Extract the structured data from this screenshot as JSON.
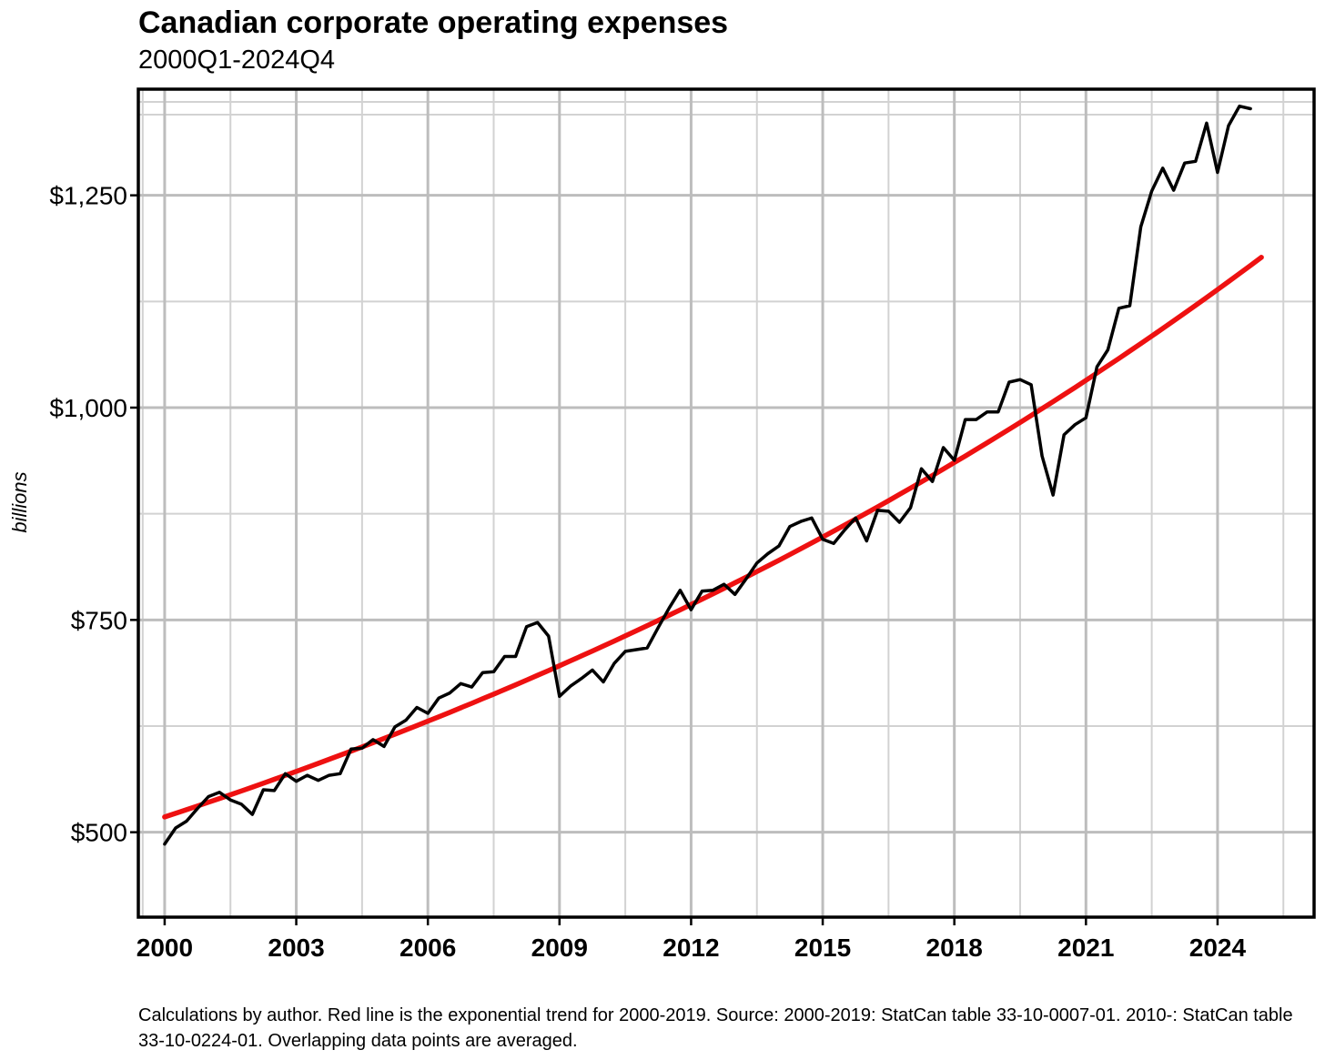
{
  "chart_data": {
    "type": "line",
    "title": "Canadian corporate operating expenses",
    "subtitle": "2000Q1-2024Q4",
    "xlabel": "",
    "ylabel": "billions",
    "xlim": [
      1999.4,
      2026.2
    ],
    "ylim": [
      400,
      1375
    ],
    "x_ticks": [
      2000,
      2003,
      2006,
      2009,
      2012,
      2015,
      2018,
      2021,
      2024
    ],
    "x_tick_labels": [
      "2000",
      "2003",
      "2006",
      "2009",
      "2012",
      "2015",
      "2018",
      "2021",
      "2024"
    ],
    "y_ticks": [
      500,
      750,
      1000,
      1250
    ],
    "y_tick_labels": [
      "$500",
      "$750",
      "$1,000",
      "$1,250"
    ],
    "x_minor_grid": [
      1999.5,
      2000,
      2001.5,
      2003,
      2004.5,
      2006,
      2007.5,
      2009,
      2010.5,
      2012,
      2013.5,
      2015,
      2016.5,
      2018,
      2019.5,
      2021,
      2022.5,
      2024,
      2025.5
    ],
    "y_minor_grid": [
      500,
      625,
      750,
      875,
      1000,
      1125,
      1250,
      1345,
      1360
    ],
    "grid": true,
    "series": [
      {
        "name": "Operating expenses",
        "color": "#000000",
        "x": [
          2000.0,
          2000.25,
          2000.5,
          2000.75,
          2001.0,
          2001.25,
          2001.5,
          2001.75,
          2002.0,
          2002.25,
          2002.5,
          2002.75,
          2003.0,
          2003.25,
          2003.5,
          2003.75,
          2004.0,
          2004.25,
          2004.5,
          2004.75,
          2005.0,
          2005.25,
          2005.5,
          2005.75,
          2006.0,
          2006.25,
          2006.5,
          2006.75,
          2007.0,
          2007.25,
          2007.5,
          2007.75,
          2008.0,
          2008.25,
          2008.5,
          2008.75,
          2009.0,
          2009.25,
          2009.5,
          2009.75,
          2010.0,
          2010.25,
          2010.5,
          2010.75,
          2011.0,
          2011.25,
          2011.5,
          2011.75,
          2012.0,
          2012.25,
          2012.5,
          2012.75,
          2013.0,
          2013.25,
          2013.5,
          2013.75,
          2014.0,
          2014.25,
          2014.5,
          2014.75,
          2015.0,
          2015.25,
          2015.5,
          2015.75,
          2016.0,
          2016.25,
          2016.5,
          2016.75,
          2017.0,
          2017.25,
          2017.5,
          2017.75,
          2018.0,
          2018.25,
          2018.5,
          2018.75,
          2019.0,
          2019.25,
          2019.5,
          2019.75,
          2020.0,
          2020.25,
          2020.5,
          2020.75,
          2021.0,
          2021.25,
          2021.5,
          2021.75,
          2022.0,
          2022.25,
          2022.5,
          2022.75,
          2023.0,
          2023.25,
          2023.5,
          2023.75,
          2024.0,
          2024.25,
          2024.5,
          2024.75
        ],
        "values": [
          486,
          505,
          513,
          528,
          542,
          547,
          538,
          533,
          521,
          550,
          549,
          569,
          560,
          567,
          561,
          567,
          569,
          598,
          599,
          609,
          601,
          624,
          632,
          647,
          640,
          658,
          664,
          675,
          671,
          688,
          689,
          707,
          707,
          742,
          747,
          731,
          660,
          672,
          681,
          691,
          677,
          699,
          713,
          715,
          717,
          741,
          764,
          785,
          762,
          784,
          785,
          792,
          780,
          798,
          817,
          828,
          837,
          860,
          866,
          870,
          845,
          840,
          856,
          870,
          843,
          879,
          878,
          865,
          882,
          928,
          913,
          953,
          938,
          986,
          986,
          995,
          995,
          1030,
          1033,
          1027,
          943,
          897,
          968,
          980,
          988,
          1048,
          1068,
          1117,
          1120,
          1213,
          1255,
          1282,
          1256,
          1288,
          1290,
          1335,
          1277,
          1332,
          1355,
          1352
        ]
      },
      {
        "name": "Exponential trend 2000-2019",
        "color": "#ee1111",
        "x_start": 2000.0,
        "x_end": 2025.0,
        "start_value": 518,
        "end_value": 1177
      }
    ]
  },
  "caption": "Calculations by author. Red line is the exponential trend for 2000-2019. Source: 2000-2019: StatCan table 33-10-0007-01. 2010-: StatCan table 33-10-0224-01. Overlapping data points are averaged."
}
